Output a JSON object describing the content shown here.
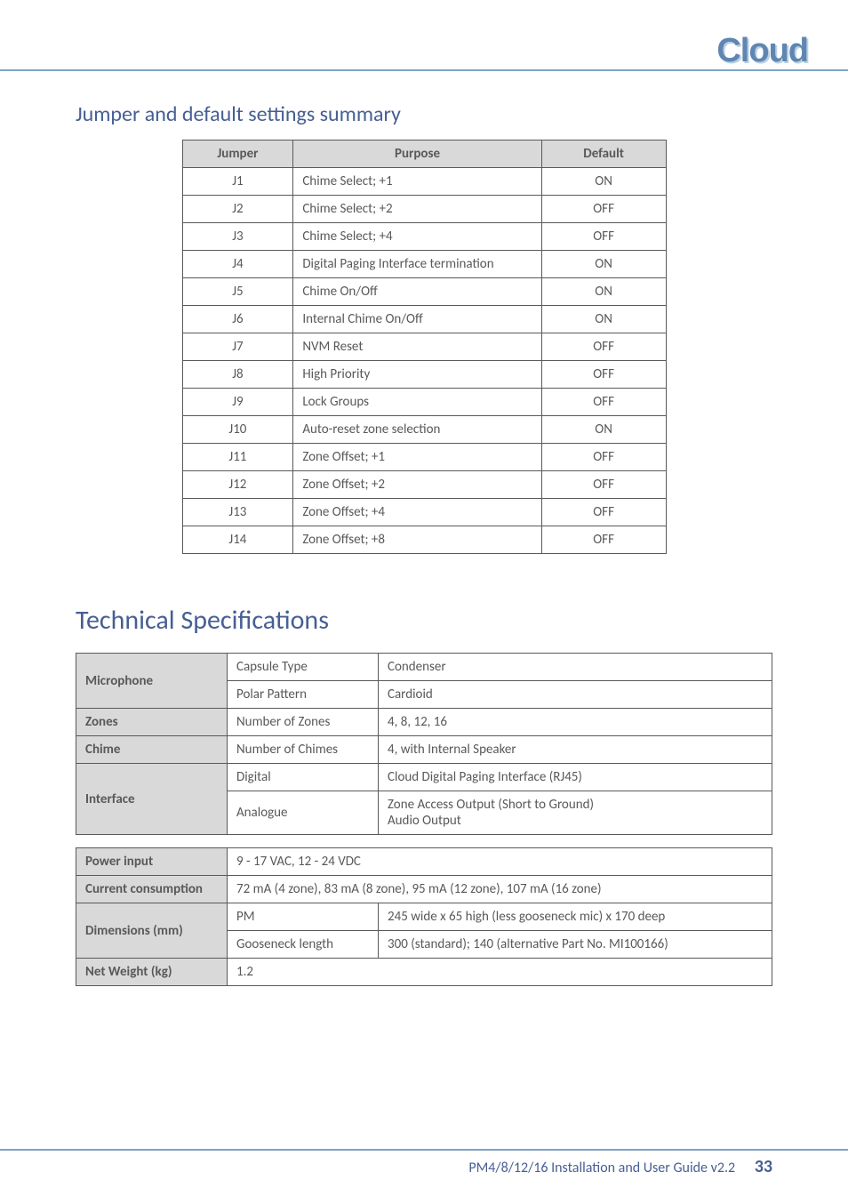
{
  "logo": "Cloud",
  "section_jumper_title": "Jumper and default settings summary",
  "jumper_table": {
    "headers": {
      "jumper": "Jumper",
      "purpose": "Purpose",
      "default": "Default"
    },
    "rows": [
      {
        "jumper": "J1",
        "purpose": "Chime Select; +1",
        "default": "ON"
      },
      {
        "jumper": "J2",
        "purpose": "Chime Select; +2",
        "default": "OFF"
      },
      {
        "jumper": "J3",
        "purpose": "Chime Select; +4",
        "default": "OFF"
      },
      {
        "jumper": "J4",
        "purpose": "Digital Paging Interface termination",
        "default": "ON"
      },
      {
        "jumper": "J5",
        "purpose": "Chime On/Off",
        "default": "ON"
      },
      {
        "jumper": "J6",
        "purpose": "Internal Chime On/Off",
        "default": "ON"
      },
      {
        "jumper": "J7",
        "purpose": "NVM Reset",
        "default": "OFF"
      },
      {
        "jumper": "J8",
        "purpose": "High Priority",
        "default": "OFF"
      },
      {
        "jumper": "J9",
        "purpose": "Lock Groups",
        "default": "OFF"
      },
      {
        "jumper": "J10",
        "purpose": "Auto-reset zone selection",
        "default": "ON"
      },
      {
        "jumper": "J11",
        "purpose": "Zone Offset; +1",
        "default": "OFF"
      },
      {
        "jumper": "J12",
        "purpose": "Zone Offset; +2",
        "default": "OFF"
      },
      {
        "jumper": "J13",
        "purpose": "Zone Offset; +4",
        "default": "OFF"
      },
      {
        "jumper": "J14",
        "purpose": "Zone Offset; +8",
        "default": "OFF"
      }
    ]
  },
  "section_spec_title": "Technical Specifications",
  "spec_table_1": {
    "microphone": {
      "label": "Microphone",
      "capsule_label": "Capsule Type",
      "capsule_value": "Condenser",
      "polar_label": "Polar Pattern",
      "polar_value": "Cardioid"
    },
    "zones": {
      "label": "Zones",
      "param": "Number of Zones",
      "value": "4, 8, 12, 16"
    },
    "chime": {
      "label": "Chime",
      "param": "Number of Chimes",
      "value": "4, with Internal Speaker"
    },
    "interface": {
      "label": "Interface",
      "digital_label": "Digital",
      "digital_value": "Cloud Digital Paging Interface (RJ45)",
      "analogue_label": "Analogue",
      "analogue_value": "Zone Access Output (Short to Ground)\nAudio Output"
    }
  },
  "spec_table_2": {
    "power": {
      "label": "Power input",
      "value": "9 - 17 VAC, 12 - 24 VDC"
    },
    "current": {
      "label": "Current consumption",
      "value": "72 mA (4 zone), 83 mA (8 zone), 95 mA (12 zone), 107 mA (16 zone)"
    },
    "dims": {
      "label": "Dimensions (mm)",
      "pm_label": "PM",
      "pm_value": "245 wide x 65 high (less gooseneck mic) x 170 deep",
      "goose_label": "Gooseneck length",
      "goose_value": "300 (standard); 140 (alternative Part No. MI100166)"
    },
    "weight": {
      "label": "Net Weight (kg)",
      "value": "1.2"
    }
  },
  "footer": {
    "doc": "PM4/8/12/16 Installation and User Guide v2.2",
    "page": "33"
  },
  "colors": {
    "accent": "#465f93",
    "rule": "#7fa3c6",
    "text": "#595959",
    "th_bg": "#d9d9d9"
  }
}
